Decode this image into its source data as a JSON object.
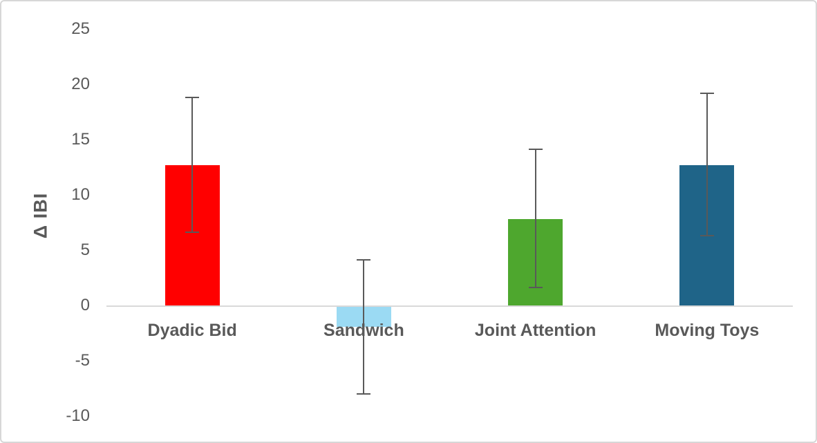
{
  "chart_data": {
    "type": "bar",
    "title": "",
    "xlabel": "",
    "ylabel": "Δ IBI",
    "categories": [
      "Dyadic Bid",
      "Sandwich",
      "Joint Attention",
      "Moving Toys"
    ],
    "values": [
      12.7,
      -1.9,
      7.8,
      12.7
    ],
    "error_high": [
      18.8,
      4.1,
      14.1,
      19.2
    ],
    "error_low": [
      6.6,
      -8.0,
      1.6,
      6.3
    ],
    "bar_colors": [
      "#FF0000",
      "#9BDAF3",
      "#4EA72E",
      "#1F6488"
    ],
    "y_ticks": [
      25,
      20,
      15,
      10,
      5,
      0,
      -5,
      -10
    ],
    "ylim": [
      -10,
      25
    ],
    "grid": false,
    "legend": null,
    "axis_line_color": "#D9D9D9",
    "error_bar_color": "#595959",
    "text_color": "#595959"
  }
}
